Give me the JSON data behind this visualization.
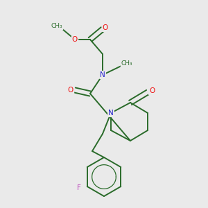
{
  "bg_color": "#eaeaea",
  "bond_color": "#2a6b2a",
  "colors": {
    "O": "#ee1111",
    "N": "#2020cc",
    "F": "#bb44bb",
    "C": "#2a6b2a"
  },
  "lw": 1.4,
  "dbo": 0.012
}
